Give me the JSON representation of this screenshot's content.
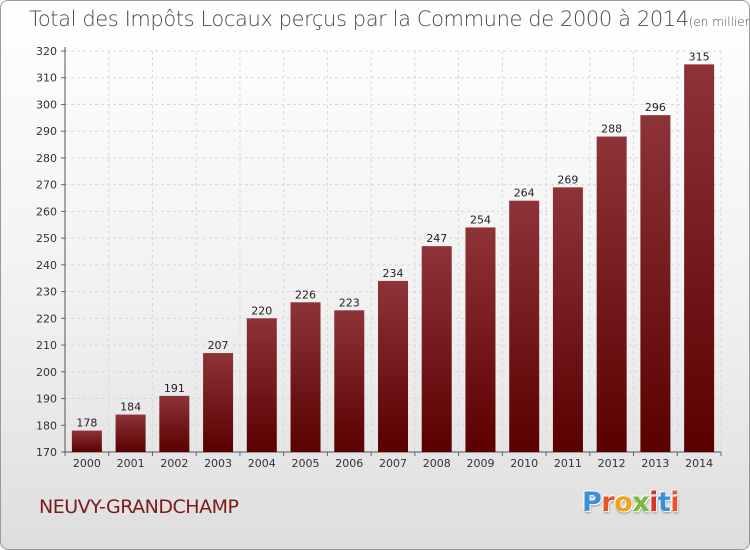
{
  "header": {
    "title": "Total des Impôts Locaux perçus par la Commune de 2000 à 2014",
    "unit": "(en milliers d'€)"
  },
  "commune": "NEUVY-GRANDCHAMP",
  "logo": {
    "letters": [
      "P",
      "r",
      "o",
      "x",
      "i",
      "t",
      "i"
    ],
    "colors": [
      "#3b8fd6",
      "#e8542a",
      "#f0a21b",
      "#7ab83a",
      "#d8322b",
      "#3b8fd6",
      "#e8542a"
    ]
  },
  "chart_data": {
    "type": "bar",
    "title": "Total des Impôts Locaux perçus par la Commune de 2000 à 2014",
    "unit": "(en milliers d'€)",
    "xlabel": "",
    "ylabel": "",
    "categories": [
      "2000",
      "2001",
      "2002",
      "2003",
      "2004",
      "2005",
      "2006",
      "2007",
      "2008",
      "2009",
      "2010",
      "2011",
      "2012",
      "2013",
      "2014"
    ],
    "values": [
      178,
      184,
      191,
      207,
      220,
      226,
      223,
      234,
      247,
      254,
      264,
      269,
      288,
      296,
      315
    ],
    "ylim": [
      170,
      320
    ],
    "yticks": [
      170,
      180,
      190,
      200,
      210,
      220,
      230,
      240,
      250,
      260,
      270,
      280,
      290,
      300,
      310,
      320
    ],
    "grid": true,
    "bar_color": "#7a1010"
  }
}
